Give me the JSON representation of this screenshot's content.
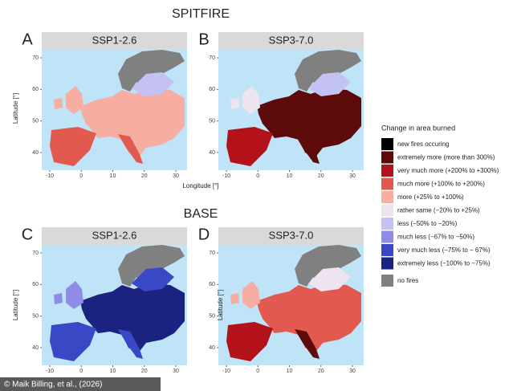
{
  "headings": {
    "top": "SPITFIRE",
    "bottom": "BASE"
  },
  "panels": [
    {
      "letter": "A",
      "title": "SSP1-2.6"
    },
    {
      "letter": "B",
      "title": "SSP3-7.0"
    },
    {
      "letter": "C",
      "title": "SSP1-2.6"
    },
    {
      "letter": "D",
      "title": "SSP3-7.0"
    }
  ],
  "axes": {
    "x_label": "Longitude [°]",
    "y_label": "Latitude [°]",
    "lat_ticks": [
      70,
      60,
      50,
      40
    ],
    "lon_ticks": [
      -10,
      0,
      10,
      20,
      30
    ]
  },
  "legend": {
    "title": "Change in area burned",
    "items": [
      {
        "label": "new fires occuring",
        "color": "#000000"
      },
      {
        "label": "extremely more (more than 300%)",
        "color": "#5c0a0a"
      },
      {
        "label": "very much more (+200% to +300%)",
        "color": "#b3121b"
      },
      {
        "label": "much more (+100% to +200%)",
        "color": "#e25a4f"
      },
      {
        "label": "more (+25% to +100%)",
        "color": "#f6aea2"
      },
      {
        "label": "rather same (−20% to +25%)",
        "color": "#eee4ef"
      },
      {
        "label": "less (−50% to −20%)",
        "color": "#c4c2f2"
      },
      {
        "label": "much less (−67% to −50%)",
        "color": "#8f8be8"
      },
      {
        "label": "very much less (−75% to − 67%)",
        "color": "#3a48c6"
      },
      {
        "label": "extremely less (−100% to −75%)",
        "color": "#1b2280"
      }
    ],
    "no_fire": {
      "label": "no fires",
      "color": "#808080"
    }
  },
  "credit": "© Maik Billing, et al., (2026)"
}
